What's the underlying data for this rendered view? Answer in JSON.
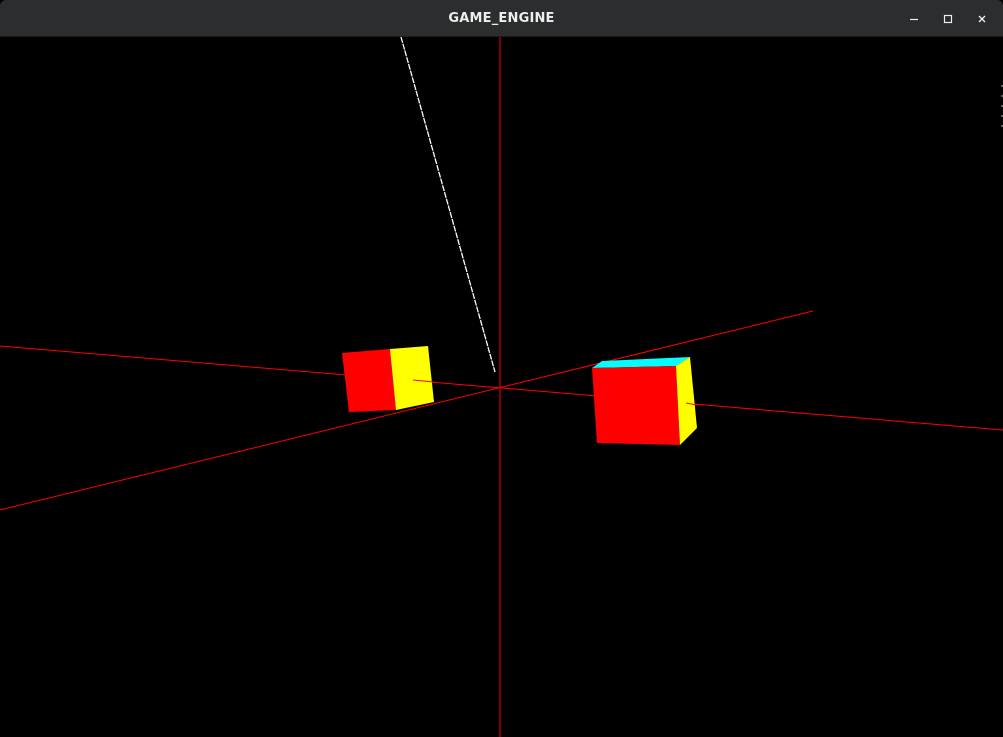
{
  "window": {
    "title": "GAME_ENGINE"
  },
  "controls": {
    "minimize_icon": "minimize-icon",
    "maximize_icon": "maximize-icon",
    "close_icon": "close-icon"
  },
  "scene": {
    "background": "#000000",
    "axis_color": "#ff0000",
    "ray_color": "#ffffff",
    "cube_colors": {
      "front": "#ff0000",
      "side": "#ffff00",
      "top": "#00ffff"
    }
  }
}
